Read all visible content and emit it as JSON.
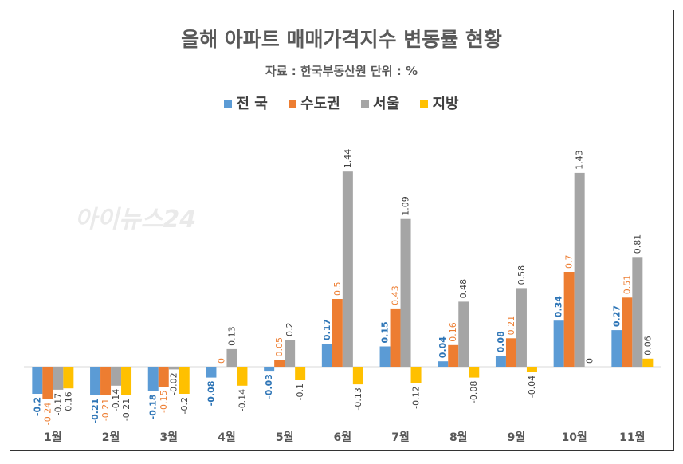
{
  "chart_data": {
    "type": "bar",
    "title": "올해 아파트 매매가격지수 변동률 현황",
    "subtitle": "자료 : 한국부동산원 단위 : %",
    "categories": [
      "1월",
      "2월",
      "3월",
      "4월",
      "5월",
      "6월",
      "7월",
      "8월",
      "9월",
      "10월",
      "11월"
    ],
    "series": [
      {
        "name": "전 국",
        "color": "#5B9BD5",
        "label_color": "#2E75B6",
        "values": [
          -0.2,
          -0.21,
          -0.18,
          -0.08,
          -0.03,
          0.17,
          0.15,
          0.04,
          0.08,
          0.34,
          0.27
        ]
      },
      {
        "name": "수도권",
        "color": "#ED7D31",
        "label_color": "#ED7D31",
        "values": [
          -0.24,
          -0.21,
          -0.15,
          0,
          0.05,
          0.5,
          0.43,
          0.16,
          0.21,
          0.7,
          0.51
        ]
      },
      {
        "name": "서울",
        "color": "#A5A5A5",
        "label_color": "#404040",
        "values": [
          -0.17,
          -0.14,
          -0.02,
          0.13,
          0.2,
          1.44,
          1.09,
          0.48,
          0.58,
          1.43,
          0.81
        ]
      },
      {
        "name": "지방",
        "color": "#FFC000",
        "label_color": "#404040",
        "values": [
          -0.16,
          -0.21,
          -0.2,
          -0.14,
          -0.1,
          -0.13,
          -0.12,
          -0.08,
          -0.04,
          0,
          0.06
        ]
      }
    ],
    "legend": "top",
    "grid": false
  },
  "watermark": "아이뉴스24"
}
